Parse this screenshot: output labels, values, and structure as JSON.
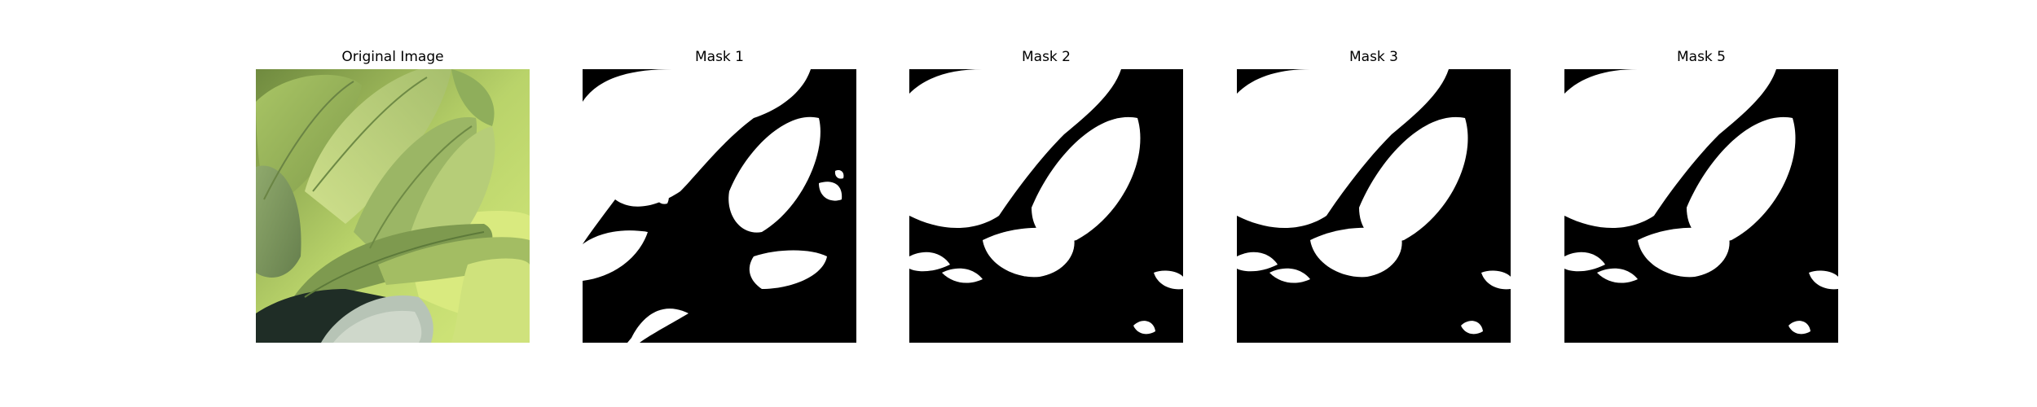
{
  "figure": {
    "panels": [
      {
        "title": "Original Image",
        "kind": "photo",
        "subject": "green-leaves"
      },
      {
        "title": "Mask 1",
        "kind": "mask"
      },
      {
        "title": "Mask 2",
        "kind": "mask"
      },
      {
        "title": "Mask 3",
        "kind": "mask"
      },
      {
        "title": "Mask 5",
        "kind": "mask"
      }
    ],
    "colors": {
      "mask_foreground": "#ffffff",
      "mask_background": "#000000",
      "leaf_light": "#c8dc7a",
      "leaf_mid": "#9db45a",
      "leaf_dark": "#5d7a3a",
      "leaf_shadow": "#2f4426"
    }
  }
}
